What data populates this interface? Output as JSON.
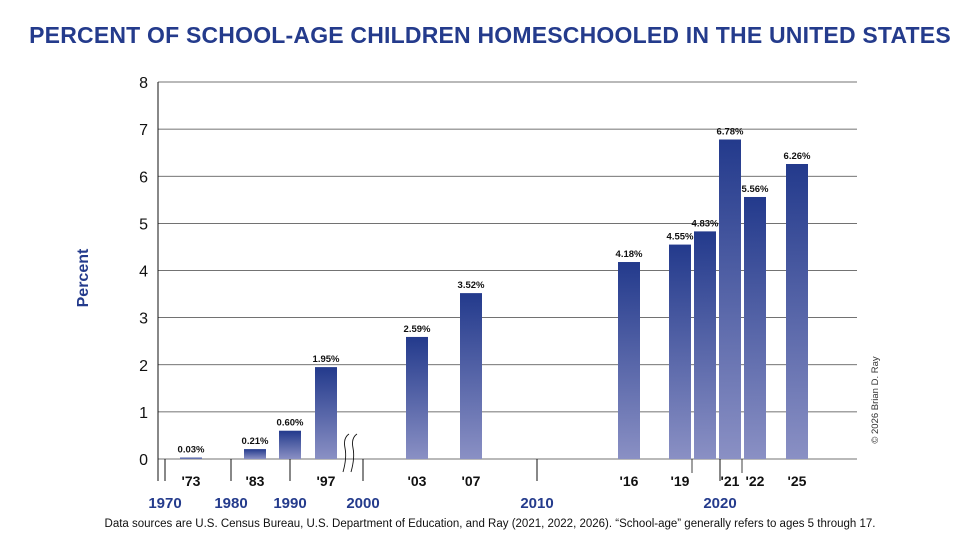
{
  "title": "PERCENT OF SCHOOL-AGE CHILDREN HOMESCHOOLED IN THE UNITED STATES",
  "footnote": "Data sources are U.S. Census Bureau, U.S. Department of Education, and Ray (2021, 2022, 2026). “School-age” generally refers to ages 5 through 17.",
  "copyright": "© 2026 Brian D. Ray",
  "colors": {
    "bar_top": "#233a8c",
    "bar_bottom": "#8a90c4",
    "title": "#243b8c",
    "grid": "#444444"
  },
  "chart_data": {
    "type": "bar",
    "title": "PERCENT OF SCHOOL-AGE CHILDREN HOMESCHOOLED IN THE UNITED STATES",
    "ylabel": "Percent",
    "xlabel": "",
    "ylim": [
      0,
      8
    ],
    "yticks": [
      "0",
      "1",
      "2",
      "3",
      "4",
      "5",
      "6",
      "7",
      "8"
    ],
    "grid": true,
    "axis_break_after": "'97",
    "decades": [
      "1970",
      "1980",
      "1990",
      "2000",
      "2010",
      "2020"
    ],
    "categories": [
      "'73",
      "'83",
      "'90",
      "'97",
      "'03",
      "'07",
      "'16",
      "'19",
      "'20",
      "'21",
      "'22",
      "'25"
    ],
    "tick_labels": [
      "'73",
      "'83",
      "",
      "'97",
      "'03",
      "'07",
      "'16",
      "'19",
      "",
      "'21",
      "'22",
      "'25"
    ],
    "values": [
      0.03,
      0.21,
      0.6,
      1.95,
      2.59,
      3.52,
      4.18,
      4.55,
      4.83,
      6.78,
      5.56,
      6.26
    ],
    "data_labels": [
      "0.03%",
      "0.21%",
      "0.60%",
      "1.95%",
      "2.59%",
      "3.52%",
      "4.18%",
      "4.55%",
      "4.83%",
      "6.78%",
      "5.56%",
      "6.26%"
    ]
  }
}
